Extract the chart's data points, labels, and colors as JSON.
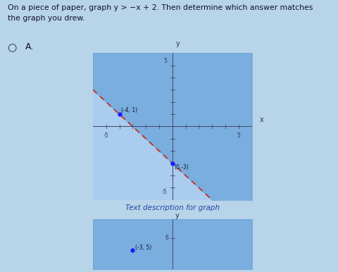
{
  "title_text1": "On a piece of paper, graph y > −x + 2. Then determine which answer matches",
  "title_text2": "the graph you drew.",
  "answer_label": "A.",
  "graph_xlim": [
    -6,
    6
  ],
  "graph_ylim": [
    -6,
    6
  ],
  "line_slope": -1,
  "line_intercept": -3,
  "line_color": "#c0392b",
  "shade_color": "#5b9bd5",
  "shade_alpha": 0.6,
  "point1": [
    -4,
    1
  ],
  "point1_label": "(-4, 1)",
  "point2": [
    0,
    -3
  ],
  "point2_label": "(0,-3)",
  "point_color": "#1a1aff",
  "bg_color": "#aaccee",
  "outer_bg": "#b8d4e8",
  "footer_text": "Text description for graph",
  "second_graph_point": [
    -3,
    5
  ],
  "second_graph_point_label": "(-3, 5)",
  "sep_color": "#9ab0c4"
}
